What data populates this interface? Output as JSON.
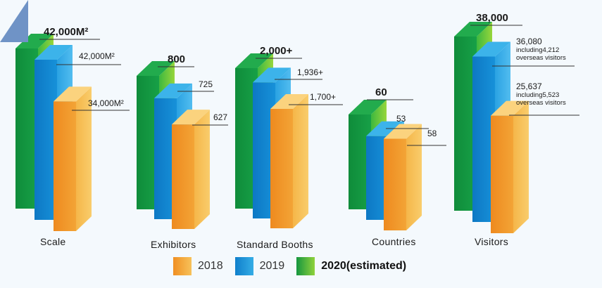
{
  "chart_data": {
    "type": "bar",
    "title": "",
    "categories": [
      "Scale",
      "Exhibitors",
      "Standard Booths",
      "Countries",
      "Visitors"
    ],
    "series": [
      {
        "name": "2018",
        "color": "#f39c2e",
        "values": [
          34000,
          627,
          1700,
          58,
          25637
        ]
      },
      {
        "name": "2019",
        "color": "#1b8fd6",
        "values": [
          42000,
          725,
          1936,
          53,
          36080
        ]
      },
      {
        "name": "2020(estimated)",
        "color": "#1a9e45",
        "values": [
          42000,
          800,
          2000,
          60,
          38000
        ]
      }
    ],
    "value_labels": {
      "2018": [
        "34,000M²",
        "627",
        "1,700+",
        "58",
        "25,637"
      ],
      "2019": [
        "42,000M²",
        "725",
        "1,936+",
        "53",
        "36,080"
      ],
      "2020(estimated)": [
        "42,000M²",
        "800",
        "2,000+",
        "60",
        "38,000"
      ]
    },
    "notes": {
      "2018": [
        "",
        "",
        "",
        "",
        "including5,523 overseas visitors"
      ],
      "2019": [
        "",
        "",
        "",
        "",
        "including4,212 overseas visitors"
      ]
    },
    "xlabel": "",
    "ylabel": "",
    "legend_position": "bottom-center"
  },
  "legend": [
    {
      "label": "2018",
      "color": "#f39c2e"
    },
    {
      "label": "2019",
      "color": "#1b8fd6"
    },
    {
      "label": "2020(estimated)",
      "color": "#1a9e45"
    }
  ],
  "colors": {
    "background": "#f4f9fd",
    "leader": "#333333",
    "corner": "#6f93c6"
  }
}
